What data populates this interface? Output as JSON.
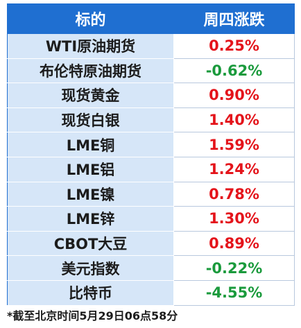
{
  "table": {
    "header": [
      "标的",
      "周四涨跌"
    ],
    "rows": [
      [
        "WTI原油期货",
        "0.25%"
      ],
      [
        "布伦特原油期货",
        "-0.62%"
      ],
      [
        "现货黄金",
        "0.90%"
      ],
      [
        "现货白银",
        "1.40%"
      ],
      [
        "LME铜",
        "1.59%"
      ],
      [
        "LME铝",
        "1.24%"
      ],
      [
        "LME镍",
        "0.78%"
      ],
      [
        "LME锌",
        "1.30%"
      ],
      [
        "CBOT大豆",
        "0.89%"
      ],
      [
        "美元指数",
        "-0.22%"
      ],
      [
        "比特币",
        "-4.55%"
      ]
    ]
  },
  "footnote": "*截至北京时间5月29日06点58分"
}
